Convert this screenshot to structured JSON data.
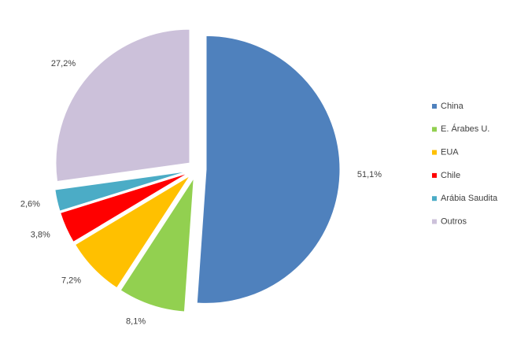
{
  "chart_data": {
    "type": "pie",
    "categories": [
      "China",
      "E. Árabes U.",
      "EUA",
      "Chile",
      "Arábia Saudita",
      "Outros"
    ],
    "values": [
      51.1,
      8.1,
      7.2,
      3.8,
      2.6,
      27.2
    ],
    "value_labels": [
      "51,1%",
      "8,1%",
      "7,2%",
      "3,8%",
      "2,6%",
      "27,2%"
    ],
    "colors": [
      "#4f81bd",
      "#92d050",
      "#ffc000",
      "#ff0000",
      "#4bacc6",
      "#ccc1da"
    ],
    "legend": "right"
  }
}
